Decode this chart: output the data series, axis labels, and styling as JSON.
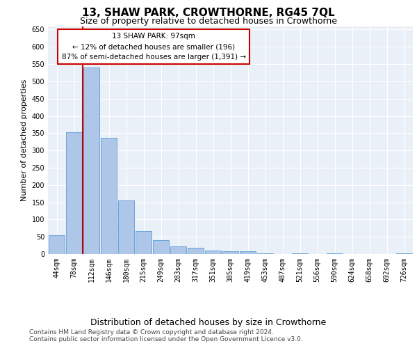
{
  "title": "13, SHAW PARK, CROWTHORNE, RG45 7QL",
  "subtitle": "Size of property relative to detached houses in Crowthorne",
  "xlabel": "Distribution of detached houses by size in Crowthorne",
  "ylabel": "Number of detached properties",
  "categories": [
    "44sqm",
    "78sqm",
    "112sqm",
    "146sqm",
    "180sqm",
    "215sqm",
    "249sqm",
    "283sqm",
    "317sqm",
    "351sqm",
    "385sqm",
    "419sqm",
    "453sqm",
    "487sqm",
    "521sqm",
    "556sqm",
    "590sqm",
    "624sqm",
    "658sqm",
    "692sqm",
    "726sqm"
  ],
  "values": [
    55,
    352,
    540,
    337,
    155,
    67,
    40,
    22,
    18,
    10,
    8,
    8,
    2,
    0,
    3,
    0,
    3,
    0,
    0,
    0,
    3
  ],
  "bar_color": "#aec6e8",
  "bar_edge_color": "#5b9bd5",
  "vline_x_idx": 1.5,
  "vline_color": "#cc0000",
  "annotation_text": "13 SHAW PARK: 97sqm\n← 12% of detached houses are smaller (196)\n87% of semi-detached houses are larger (1,391) →",
  "annotation_box_color": "#ffffff",
  "annotation_box_edge": "#cc0000",
  "ylim": [
    0,
    660
  ],
  "yticks": [
    0,
    50,
    100,
    150,
    200,
    250,
    300,
    350,
    400,
    450,
    500,
    550,
    600,
    650
  ],
  "footer": "Contains HM Land Registry data © Crown copyright and database right 2024.\nContains public sector information licensed under the Open Government Licence v3.0.",
  "bg_color": "#ffffff",
  "plot_bg_color": "#eaf0f8",
  "grid_color": "#ffffff",
  "title_fontsize": 11,
  "subtitle_fontsize": 9,
  "xlabel_fontsize": 9,
  "ylabel_fontsize": 8,
  "tick_fontsize": 7,
  "annotation_fontsize": 7.5,
  "footer_fontsize": 6.5
}
